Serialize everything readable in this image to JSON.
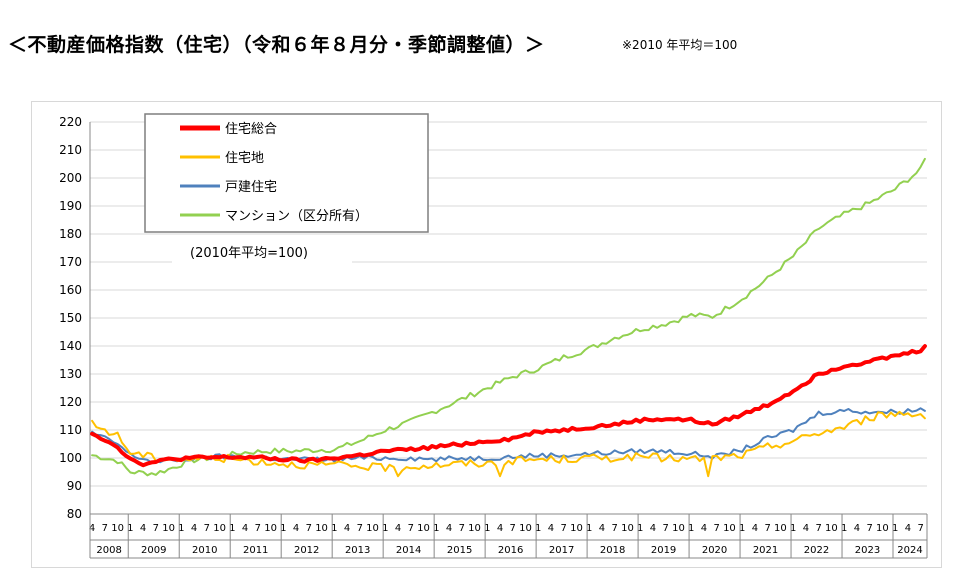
{
  "header": {
    "title": "＜不動産価格指数（住宅）（令和６年８月分・季節調整値）＞",
    "note": "※2010 年平均＝100"
  },
  "chart_data": {
    "type": "line",
    "annotation": "(2010年平均=100)",
    "ylim": [
      80,
      220
    ],
    "yticks": [
      80,
      90,
      100,
      110,
      120,
      130,
      140,
      150,
      160,
      170,
      180,
      190,
      200,
      210,
      220
    ],
    "grid": true,
    "legend_position": "top-left",
    "x_start": "2008-04",
    "x_end": "2024-08",
    "month_ticks": [
      "4",
      "7",
      "10",
      "1"
    ],
    "years": [
      "2008",
      "2009",
      "2010",
      "2011",
      "2012",
      "2013",
      "2014",
      "2015",
      "2016",
      "2017",
      "2018",
      "2019",
      "2020",
      "2021",
      "2022",
      "2023",
      "2024"
    ],
    "series": [
      {
        "name": "住宅総合",
        "color": "#ff0000",
        "width": 4,
        "anchors": [
          [
            "2008-04",
            109
          ],
          [
            "2008-10",
            104
          ],
          [
            "2009-01",
            99.5
          ],
          [
            "2009-04",
            98
          ],
          [
            "2009-07",
            98.5
          ],
          [
            "2009-10",
            99.5
          ],
          [
            "2010-03",
            100
          ],
          [
            "2011-01",
            100.3
          ],
          [
            "2011-06",
            100.2
          ],
          [
            "2012-01",
            99.5
          ],
          [
            "2012-07",
            99
          ],
          [
            "2013-01",
            100
          ],
          [
            "2013-07",
            101
          ],
          [
            "2014-01",
            102.5
          ],
          [
            "2014-07",
            103
          ],
          [
            "2015-01",
            104
          ],
          [
            "2015-07",
            105
          ],
          [
            "2016-01",
            106
          ],
          [
            "2016-07",
            107
          ],
          [
            "2017-01",
            109.5
          ],
          [
            "2017-07",
            110
          ],
          [
            "2018-01",
            111
          ],
          [
            "2018-07",
            112
          ],
          [
            "2019-01",
            113.5
          ],
          [
            "2019-07",
            114
          ],
          [
            "2020-01",
            113.5
          ],
          [
            "2020-06",
            112
          ],
          [
            "2021-01",
            115.5
          ],
          [
            "2021-07",
            119
          ],
          [
            "2022-01",
            124
          ],
          [
            "2022-07",
            130
          ],
          [
            "2023-01",
            133
          ],
          [
            "2023-07",
            134.5
          ],
          [
            "2024-01",
            136.5
          ],
          [
            "2024-07",
            138.5
          ],
          [
            "2024-08",
            140.5
          ]
        ],
        "noise": 0.6
      },
      {
        "name": "住宅地",
        "color": "#ffc000",
        "width": 2,
        "anchors": [
          [
            "2008-04",
            112
          ],
          [
            "2008-10",
            108
          ],
          [
            "2009-01",
            102
          ],
          [
            "2009-07",
            100
          ],
          [
            "2010-01",
            99.5
          ],
          [
            "2010-10",
            100
          ],
          [
            "2011-06",
            99
          ],
          [
            "2012-01",
            98
          ],
          [
            "2012-07",
            97.5
          ],
          [
            "2013-01",
            97.5
          ],
          [
            "2013-07",
            97
          ],
          [
            "2014-01",
            96.5
          ],
          [
            "2014-07",
            97
          ],
          [
            "2015-01",
            97.5
          ],
          [
            "2015-07",
            98
          ],
          [
            "2016-01",
            98
          ],
          [
            "2016-07",
            99
          ],
          [
            "2017-01",
            99.5
          ],
          [
            "2017-07",
            99.5
          ],
          [
            "2018-01",
            100
          ],
          [
            "2018-07",
            100
          ],
          [
            "2019-01",
            100.5
          ],
          [
            "2019-07",
            100
          ],
          [
            "2020-01",
            99.5
          ],
          [
            "2020-07",
            100
          ],
          [
            "2021-01",
            101
          ],
          [
            "2021-07",
            104
          ],
          [
            "2022-01",
            106
          ],
          [
            "2022-07",
            109
          ],
          [
            "2023-01",
            111
          ],
          [
            "2023-07",
            114.5
          ],
          [
            "2024-01",
            116
          ],
          [
            "2024-08",
            115.5
          ]
        ],
        "noise": 1.4,
        "spikes": [
          [
            "2014-04",
            93.5
          ],
          [
            "2016-04",
            93.5
          ],
          [
            "2020-05",
            93.5
          ]
        ]
      },
      {
        "name": "戸建住宅",
        "color": "#4f81bd",
        "width": 2,
        "anchors": [
          [
            "2008-04",
            109
          ],
          [
            "2008-10",
            105
          ],
          [
            "2009-01",
            101
          ],
          [
            "2009-07",
            98.5
          ],
          [
            "2010-01",
            99.5
          ],
          [
            "2010-10",
            100.5
          ],
          [
            "2011-06",
            100.5
          ],
          [
            "2012-01",
            99.5
          ],
          [
            "2012-07",
            99.5
          ],
          [
            "2013-01",
            99.5
          ],
          [
            "2013-07",
            100
          ],
          [
            "2014-01",
            100
          ],
          [
            "2014-07",
            100
          ],
          [
            "2015-01",
            99.5
          ],
          [
            "2015-07",
            100
          ],
          [
            "2016-01",
            100
          ],
          [
            "2016-07",
            100.5
          ],
          [
            "2017-01",
            101
          ],
          [
            "2017-07",
            101
          ],
          [
            "2018-01",
            101.5
          ],
          [
            "2018-07",
            102
          ],
          [
            "2019-01",
            102.5
          ],
          [
            "2019-07",
            102.5
          ],
          [
            "2020-01",
            101.5
          ],
          [
            "2020-07",
            100.5
          ],
          [
            "2021-01",
            103
          ],
          [
            "2021-07",
            107
          ],
          [
            "2022-01",
            110
          ],
          [
            "2022-07",
            116
          ],
          [
            "2023-01",
            117
          ],
          [
            "2023-07",
            116.5
          ],
          [
            "2024-01",
            116.5
          ],
          [
            "2024-08",
            117.5
          ]
        ],
        "noise": 0.9
      },
      {
        "name": "マンション（区分所有）",
        "color": "#92d050",
        "width": 2,
        "anchors": [
          [
            "2008-04",
            101
          ],
          [
            "2008-10",
            99
          ],
          [
            "2009-01",
            95
          ],
          [
            "2009-07",
            94.5
          ],
          [
            "2009-10",
            96
          ],
          [
            "2010-03",
            99
          ],
          [
            "2010-10",
            100.5
          ],
          [
            "2011-04",
            102
          ],
          [
            "2011-10",
            102.5
          ],
          [
            "2012-04",
            102.5
          ],
          [
            "2012-10",
            103
          ],
          [
            "2013-01",
            103
          ],
          [
            "2013-07",
            106
          ],
          [
            "2014-01",
            110
          ],
          [
            "2014-07",
            113
          ],
          [
            "2015-01",
            117
          ],
          [
            "2015-07",
            121
          ],
          [
            "2016-01",
            125
          ],
          [
            "2016-07",
            129
          ],
          [
            "2017-01",
            132
          ],
          [
            "2017-07",
            136
          ],
          [
            "2018-01",
            139
          ],
          [
            "2018-07",
            143
          ],
          [
            "2019-01",
            146
          ],
          [
            "2019-07",
            148
          ],
          [
            "2020-01",
            151
          ],
          [
            "2020-06",
            150.5
          ],
          [
            "2021-01",
            157
          ],
          [
            "2021-07",
            164
          ],
          [
            "2022-01",
            172
          ],
          [
            "2022-07",
            182
          ],
          [
            "2023-01",
            187
          ],
          [
            "2023-07",
            191
          ],
          [
            "2024-01",
            196
          ],
          [
            "2024-07",
            203
          ],
          [
            "2024-08",
            206.5
          ]
        ],
        "noise": 1.0
      }
    ]
  }
}
